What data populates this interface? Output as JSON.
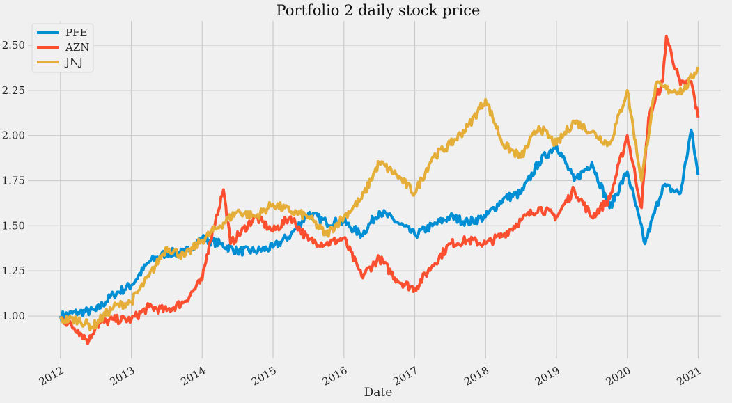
{
  "chart_data": {
    "type": "line",
    "title": "Portfolio 2 daily stock price",
    "xlabel": "Date",
    "ylabel": "",
    "xlim": [
      2011.54,
      2021.32
    ],
    "ylim": [
      0.765,
      2.635
    ],
    "grid": true,
    "legend_placement": "top-left",
    "x_ticks": [
      "2012",
      "2013",
      "2014",
      "2015",
      "2016",
      "2017",
      "2018",
      "2019",
      "2020",
      "2021"
    ],
    "y_ticks": [
      "1.00",
      "1.25",
      "1.50",
      "1.75",
      "2.00",
      "2.25",
      "2.50"
    ],
    "background": "#f0f0f0",
    "grid_color": "#cbcbcb",
    "series": [
      {
        "name": "PFE",
        "color": "#008fd5",
        "x": [
          2012.0,
          2012.25,
          2012.5,
          2012.75,
          2013.0,
          2013.25,
          2013.5,
          2013.75,
          2014.0,
          2014.25,
          2014.5,
          2014.75,
          2015.0,
          2015.25,
          2015.5,
          2015.75,
          2016.0,
          2016.25,
          2016.5,
          2016.75,
          2017.0,
          2017.25,
          2017.5,
          2017.75,
          2018.0,
          2018.25,
          2018.5,
          2018.75,
          2019.0,
          2019.25,
          2019.5,
          2019.75,
          2020.0,
          2020.25,
          2020.5,
          2020.75,
          2020.9,
          2021.0
        ],
        "y": [
          1.0,
          1.02,
          1.03,
          1.12,
          1.17,
          1.3,
          1.35,
          1.35,
          1.43,
          1.4,
          1.36,
          1.36,
          1.38,
          1.45,
          1.57,
          1.52,
          1.52,
          1.45,
          1.58,
          1.52,
          1.45,
          1.5,
          1.55,
          1.52,
          1.55,
          1.65,
          1.68,
          1.85,
          1.95,
          1.75,
          1.85,
          1.6,
          1.8,
          1.4,
          1.72,
          1.68,
          2.03,
          1.78
        ]
      },
      {
        "name": "AZN",
        "color": "#fc4f30",
        "x": [
          2012.0,
          2012.25,
          2012.4,
          2012.5,
          2012.75,
          2013.0,
          2013.25,
          2013.5,
          2013.75,
          2014.0,
          2014.1,
          2014.3,
          2014.4,
          2014.75,
          2015.0,
          2015.25,
          2015.5,
          2015.75,
          2016.0,
          2016.25,
          2016.5,
          2016.75,
          2017.0,
          2017.25,
          2017.5,
          2017.75,
          2018.0,
          2018.25,
          2018.5,
          2018.75,
          2019.0,
          2019.25,
          2019.5,
          2019.75,
          2020.0,
          2020.2,
          2020.3,
          2020.5,
          2020.55,
          2020.75,
          2020.9,
          2021.0
        ],
        "y": [
          0.99,
          0.92,
          0.86,
          0.95,
          0.98,
          0.98,
          1.05,
          1.03,
          1.08,
          1.2,
          1.4,
          1.7,
          1.4,
          1.55,
          1.47,
          1.55,
          1.42,
          1.4,
          1.43,
          1.22,
          1.32,
          1.2,
          1.15,
          1.28,
          1.4,
          1.42,
          1.4,
          1.45,
          1.53,
          1.6,
          1.55,
          1.7,
          1.55,
          1.65,
          2.0,
          1.6,
          2.1,
          2.3,
          2.55,
          2.28,
          2.3,
          2.1
        ]
      },
      {
        "name": "JNJ",
        "color": "#e5ae38",
        "x": [
          2012.0,
          2012.25,
          2012.45,
          2012.75,
          2013.0,
          2013.25,
          2013.5,
          2013.75,
          2014.0,
          2014.25,
          2014.5,
          2014.75,
          2015.0,
          2015.25,
          2015.5,
          2015.75,
          2016.0,
          2016.25,
          2016.5,
          2016.75,
          2017.0,
          2017.25,
          2017.5,
          2017.75,
          2018.0,
          2018.25,
          2018.5,
          2018.75,
          2019.0,
          2019.25,
          2019.5,
          2019.75,
          2020.0,
          2020.2,
          2020.4,
          2020.6,
          2020.8,
          2021.0
        ],
        "y": [
          0.98,
          0.98,
          0.94,
          1.05,
          1.08,
          1.22,
          1.38,
          1.33,
          1.42,
          1.5,
          1.58,
          1.55,
          1.62,
          1.58,
          1.55,
          1.45,
          1.55,
          1.65,
          1.85,
          1.78,
          1.68,
          1.88,
          1.95,
          2.05,
          2.2,
          1.95,
          1.88,
          2.05,
          1.95,
          2.08,
          2.02,
          1.95,
          2.25,
          1.75,
          2.28,
          2.25,
          2.25,
          2.38
        ]
      }
    ]
  }
}
